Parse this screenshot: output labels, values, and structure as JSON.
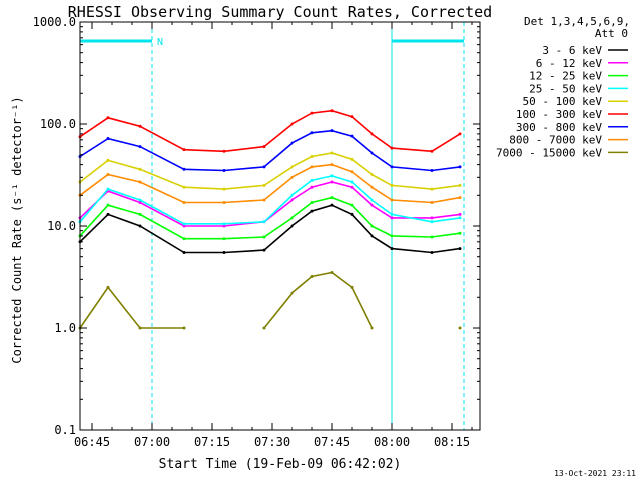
{
  "chart_data": {
    "type": "line",
    "title": "RHESSI Observing Summary Count Rates, Corrected",
    "xlabel": "Start Time (19-Feb-09 06:42:02)",
    "ylabel": "Corrected Count Rate (s⁻¹ detector⁻¹)",
    "yscale": "log",
    "ylim": [
      0.1,
      1000
    ],
    "xlim": [
      "06:42",
      "08:22"
    ],
    "y_ticks": [
      "1000.0",
      "100.0",
      "10.0",
      "1.0",
      "0.1"
    ],
    "x_ticks": [
      "06:45",
      "07:00",
      "07:15",
      "07:30",
      "07:45",
      "08:00",
      "08:15"
    ],
    "grid": false,
    "legend_title": [
      "Det 1,3,4,5,6,9,",
      "Att 0"
    ],
    "legend_position": "right",
    "timestamp": "13-Oct-2021 23:11",
    "night_flag_label": "N",
    "flag_color": "#00e5ee",
    "night_intervals": [
      [
        "06:42",
        "07:00"
      ],
      [
        "08:00",
        "08:18"
      ]
    ],
    "x": [
      "06:42",
      "06:49",
      "06:57",
      "07:08",
      "07:18",
      "07:28",
      "07:35",
      "07:40",
      "07:45",
      "07:50",
      "07:55",
      "08:00",
      "08:10",
      "08:17"
    ],
    "series": [
      {
        "name": "3 - 6 keV",
        "color": "#000000",
        "values": [
          7,
          13,
          10,
          5.5,
          5.5,
          5.8,
          10,
          14,
          16,
          13,
          8,
          6,
          5.5,
          6
        ]
      },
      {
        "name": "6 - 12 keV",
        "color": "#ff00ff",
        "values": [
          12,
          22,
          17,
          10,
          10,
          11,
          18,
          24,
          27,
          24,
          16,
          12,
          12,
          13
        ]
      },
      {
        "name": "12 - 25 keV",
        "color": "#00ff00",
        "values": [
          8,
          16,
          13,
          7.5,
          7.5,
          7.8,
          12,
          17,
          19,
          16,
          10,
          8,
          7.8,
          8.5
        ]
      },
      {
        "name": "25 - 50 keV",
        "color": "#00ffff",
        "values": [
          11,
          23,
          18,
          10.5,
          10.5,
          11,
          20,
          28,
          31,
          27,
          18,
          13,
          11,
          12
        ]
      },
      {
        "name": "50 - 100 keV",
        "color": "#d8d000",
        "values": [
          27,
          44,
          36,
          24,
          23,
          25,
          38,
          48,
          52,
          45,
          32,
          25,
          23,
          25
        ]
      },
      {
        "name": "100 - 300 keV",
        "color": "#ff0000",
        "values": [
          75,
          115,
          95,
          56,
          54,
          60,
          100,
          128,
          135,
          118,
          80,
          58,
          54,
          80
        ]
      },
      {
        "name": "300 - 800 keV",
        "color": "#0000ff",
        "values": [
          48,
          72,
          60,
          36,
          35,
          38,
          65,
          82,
          86,
          76,
          52,
          38,
          35,
          38
        ]
      },
      {
        "name": "800 - 7000 keV",
        "color": "#ff8c00",
        "values": [
          20,
          32,
          27,
          17,
          17,
          18,
          30,
          38,
          40,
          34,
          24,
          18,
          17,
          19
        ]
      },
      {
        "name": "7000 - 15000 keV",
        "color": "#808000",
        "values": [
          1,
          2.5,
          1,
          1,
          null,
          1,
          2.2,
          3.2,
          3.5,
          2.5,
          1,
          null,
          null,
          1
        ]
      }
    ]
  }
}
